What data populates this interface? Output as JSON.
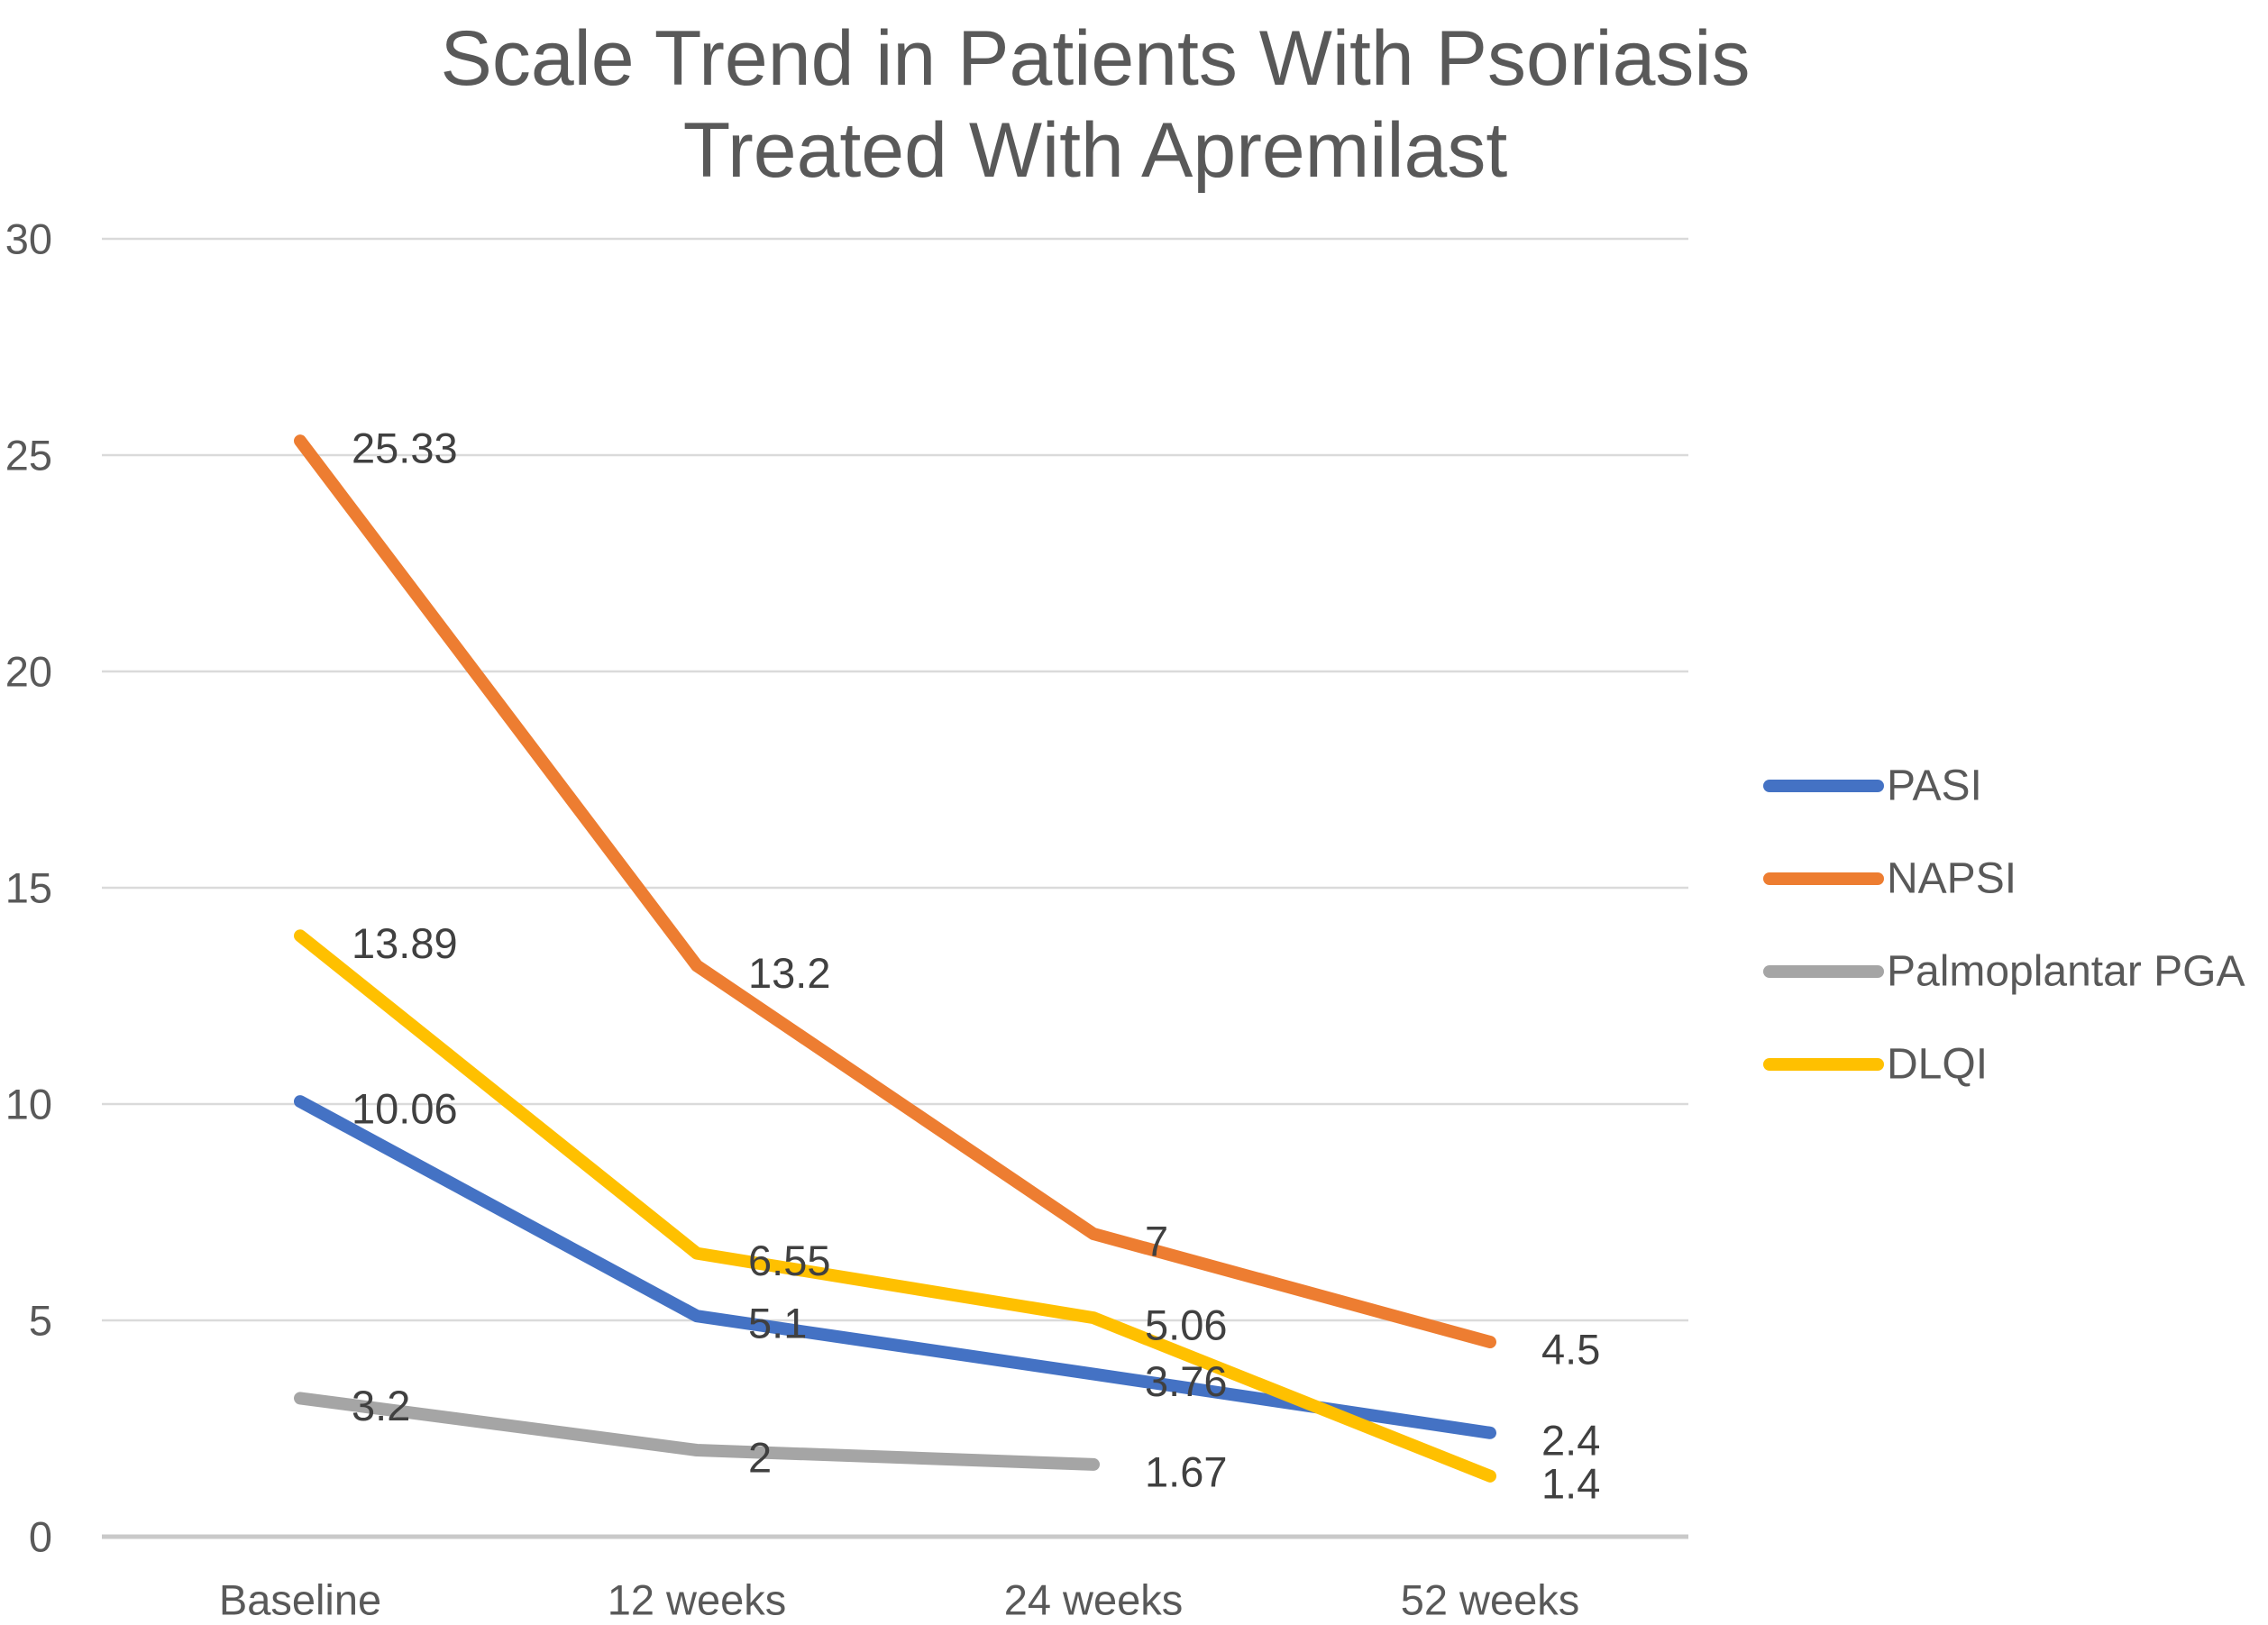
{
  "title": {
    "line1": "Scale Trend in Patients With Psoriasis",
    "line2": "Treated With Apremilast"
  },
  "chart_data": {
    "type": "line",
    "title": "Scale Trend in Patients With Psoriasis Treated With Apremilast",
    "categories": [
      "Baseline",
      "12 weeks",
      "24 weeks",
      "52 weeks"
    ],
    "series": [
      {
        "name": "PASI",
        "color": "#4472C4",
        "values": [
          10.06,
          5.1,
          3.76,
          2.4
        ],
        "labels": [
          "10.06",
          "5.1",
          "3.76",
          "2.4"
        ]
      },
      {
        "name": "NAPSI",
        "color": "#ED7D31",
        "values": [
          25.33,
          13.2,
          7,
          4.5
        ],
        "labels": [
          "25.33",
          "13.2",
          "7",
          "4.5"
        ]
      },
      {
        "name": "Palmoplantar PGA",
        "color": "#A5A5A5",
        "values": [
          3.2,
          2,
          1.67,
          null
        ],
        "labels": [
          "3.2",
          "2",
          "1.67"
        ]
      },
      {
        "name": "DLQI",
        "color": "#FFC000",
        "values": [
          13.89,
          6.55,
          5.06,
          1.4
        ],
        "labels": [
          "13.89",
          "6.55",
          "5.06",
          "1.4"
        ]
      }
    ],
    "xlabel": "",
    "ylabel": "",
    "ylim": [
      0,
      30
    ],
    "y_axis": {
      "min": 0,
      "max": 30,
      "step": 5,
      "tick_labels": [
        "0",
        "5",
        "10",
        "15",
        "20",
        "25",
        "30"
      ]
    },
    "grid": true,
    "legend": {
      "position": "right",
      "entries": [
        "PASI",
        "NAPSI",
        "Palmoplantar PGA",
        "DLQI"
      ]
    },
    "colors": {
      "title_text": "#595959",
      "axis_text": "#595959",
      "data_label_text": "#404040",
      "gridline": "#DADADA",
      "axis_line": "#C9C9C9",
      "background": "#FFFFFF"
    }
  }
}
